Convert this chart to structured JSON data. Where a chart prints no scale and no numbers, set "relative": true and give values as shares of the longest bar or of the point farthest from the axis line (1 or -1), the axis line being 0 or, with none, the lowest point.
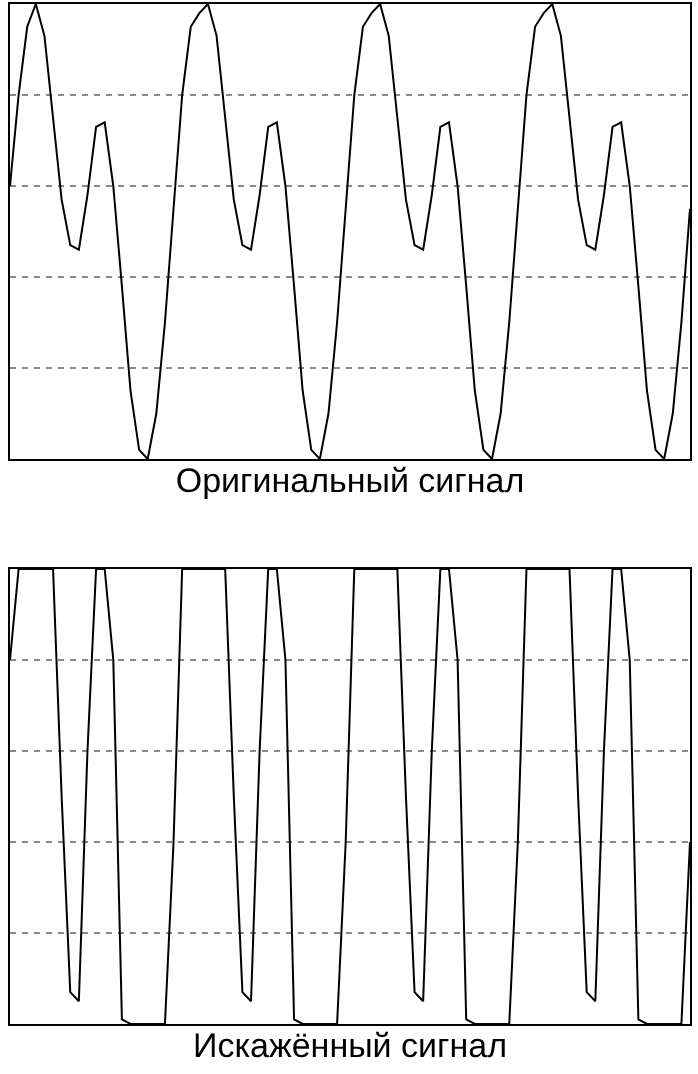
{
  "chart_data": [
    {
      "type": "line",
      "relative": true,
      "xlabel": "Оригинальный сигнал",
      "grid": "y",
      "tick_labels": false,
      "color": "#000000",
      "categories": [
        null,
        null,
        null,
        null,
        null,
        null,
        null,
        null,
        null,
        null,
        null,
        null,
        null,
        null,
        null,
        null,
        null,
        null,
        null,
        null,
        null,
        null,
        null,
        null,
        null,
        null,
        null,
        null,
        null,
        null,
        null,
        null,
        null,
        null,
        null,
        null,
        null,
        null,
        null,
        null,
        null,
        null,
        null,
        null,
        null,
        null,
        null,
        null,
        null,
        null,
        null,
        null,
        null,
        null,
        null,
        null,
        null,
        null,
        null,
        null,
        null,
        null,
        null,
        null,
        null,
        null,
        null,
        null,
        null,
        null,
        null,
        null,
        null,
        null,
        null,
        null,
        null,
        null,
        null,
        null
      ],
      "values": [
        0.6,
        0.8,
        0.95,
        1.0,
        0.93,
        0.75,
        0.57,
        0.47,
        0.46,
        0.58,
        0.73,
        0.74,
        0.6,
        0.38,
        0.15,
        0.02,
        0.0,
        0.1,
        0.3,
        0.55,
        0.8,
        0.95,
        0.98,
        1.0,
        0.93,
        0.75,
        0.57,
        0.47,
        0.46,
        0.58,
        0.73,
        0.74,
        0.6,
        0.38,
        0.15,
        0.02,
        0.0,
        0.1,
        0.3,
        0.55,
        0.8,
        0.95,
        0.98,
        1.0,
        0.93,
        0.75,
        0.57,
        0.47,
        0.46,
        0.58,
        0.73,
        0.74,
        0.6,
        0.38,
        0.15,
        0.02,
        0.0,
        0.1,
        0.3,
        0.55,
        0.8,
        0.95,
        0.98,
        1.0,
        0.93,
        0.75,
        0.57,
        0.47,
        0.46,
        0.58,
        0.73,
        0.74,
        0.6,
        0.38,
        0.15,
        0.02,
        0.0,
        0.1,
        0.3,
        0.55
      ]
    },
    {
      "type": "line",
      "relative": true,
      "xlabel": "Искажённый сигнал",
      "grid": "y",
      "tick_labels": false,
      "color": "#000000",
      "categories": [
        null,
        null,
        null,
        null,
        null,
        null,
        null,
        null,
        null,
        null,
        null,
        null,
        null,
        null,
        null,
        null,
        null,
        null,
        null,
        null,
        null,
        null,
        null,
        null,
        null,
        null,
        null,
        null,
        null,
        null,
        null,
        null,
        null,
        null,
        null,
        null,
        null,
        null,
        null,
        null,
        null,
        null,
        null,
        null,
        null,
        null,
        null,
        null,
        null,
        null,
        null,
        null,
        null,
        null,
        null,
        null,
        null,
        null,
        null,
        null,
        null,
        null,
        null,
        null,
        null,
        null,
        null,
        null,
        null,
        null,
        null,
        null,
        null,
        null,
        null,
        null,
        null,
        null,
        null,
        null
      ],
      "values": [
        0.8,
        1.0,
        1.0,
        1.0,
        1.0,
        1.0,
        0.5,
        0.07,
        0.05,
        0.6,
        1.0,
        1.0,
        0.8,
        0.01,
        0.0,
        0.0,
        0.0,
        0.0,
        0.0,
        0.4,
        1.0,
        1.0,
        1.0,
        1.0,
        1.0,
        1.0,
        0.5,
        0.07,
        0.05,
        0.6,
        1.0,
        1.0,
        0.8,
        0.01,
        0.0,
        0.0,
        0.0,
        0.0,
        0.0,
        0.4,
        1.0,
        1.0,
        1.0,
        1.0,
        1.0,
        1.0,
        0.5,
        0.07,
        0.05,
        0.6,
        1.0,
        1.0,
        0.8,
        0.01,
        0.0,
        0.0,
        0.0,
        0.0,
        0.0,
        0.4,
        1.0,
        1.0,
        1.0,
        1.0,
        1.0,
        1.0,
        0.5,
        0.07,
        0.05,
        0.6,
        1.0,
        1.0,
        0.8,
        0.01,
        0.0,
        0.0,
        0.0,
        0.0,
        0.0,
        0.4
      ]
    }
  ]
}
